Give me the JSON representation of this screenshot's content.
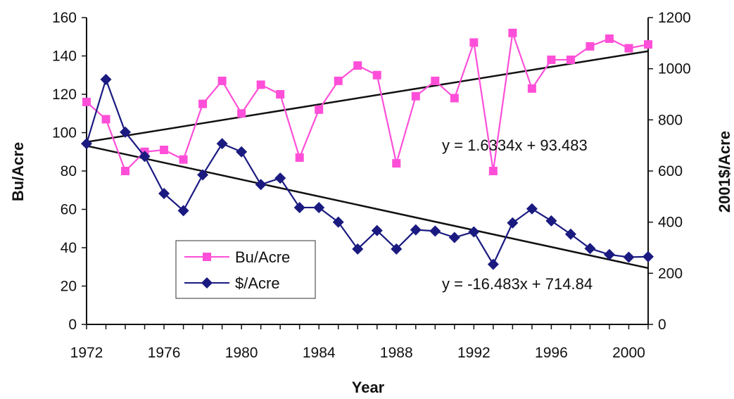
{
  "chart_data": {
    "type": "line",
    "title": "",
    "xlabel": "Year",
    "ylabel_left": "Bu/Acre",
    "ylabel_right": "2001$/Acre",
    "xlim": [
      1972,
      2001
    ],
    "ylim_left": [
      0,
      160
    ],
    "ylim_right": [
      0,
      1200
    ],
    "x_ticks": [
      1972,
      1976,
      1980,
      1984,
      1988,
      1992,
      1996,
      2000
    ],
    "y_ticks_left": [
      0,
      20,
      40,
      60,
      80,
      100,
      120,
      140,
      160
    ],
    "y_ticks_right": [
      0,
      200,
      400,
      600,
      800,
      1000,
      1200
    ],
    "grid": false,
    "legend_position": "bottom-left",
    "x": [
      1972,
      1973,
      1974,
      1975,
      1976,
      1977,
      1978,
      1979,
      1980,
      1981,
      1982,
      1983,
      1984,
      1985,
      1986,
      1987,
      1988,
      1989,
      1990,
      1991,
      1992,
      1993,
      1994,
      1995,
      1996,
      1997,
      1998,
      1999,
      2000,
      2001
    ],
    "series": [
      {
        "name": "Bu/Acre",
        "axis": "left",
        "color": "#ff4fd8",
        "marker": "square",
        "values": [
          116,
          107,
          80,
          90,
          91,
          86,
          115,
          127,
          110,
          125,
          120,
          87,
          112,
          127,
          135,
          130,
          84,
          119,
          127,
          118,
          147,
          80,
          152,
          123,
          138,
          138,
          145,
          149,
          144,
          146
        ]
      },
      {
        "name": "$/Acre",
        "axis": "right",
        "color": "#1a1a80",
        "marker": "diamond",
        "values": [
          707,
          958,
          752,
          657,
          512,
          445,
          585,
          707,
          675,
          547,
          572,
          457,
          457,
          400,
          295,
          367,
          295,
          370,
          365,
          340,
          362,
          235,
          397,
          452,
          405,
          353,
          297,
          273,
          263,
          265
        ]
      }
    ],
    "trendlines": [
      {
        "series": "Bu/Acre",
        "axis": "left",
        "slope": 1.6334,
        "intercept": 93.483,
        "label": "y = 1.6334x + 93.483"
      },
      {
        "series": "$/Acre",
        "axis": "right",
        "slope": -16.483,
        "intercept": 714.84,
        "label": "y = -16.483x + 714.84"
      }
    ],
    "trendline_color": "#111111"
  }
}
